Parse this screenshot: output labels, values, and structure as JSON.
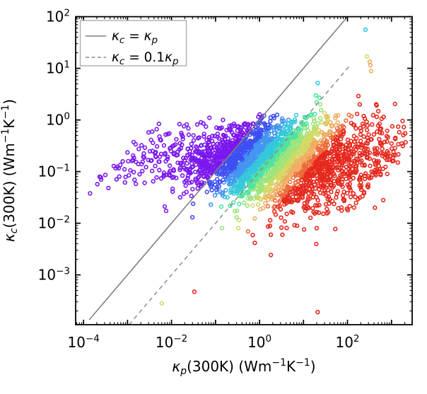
{
  "chart_data": {
    "type": "scatter",
    "title": "",
    "xlabel": "κp(300K) (Wm−1K−1)",
    "ylabel": "κc(300K) (Wm−1K−1)",
    "x_scale": "log",
    "y_scale": "log",
    "xlim": [
      6.6e-05,
      3000
    ],
    "ylim": [
      0.000108,
      100
    ],
    "xlim_log": [
      -4.18,
      3.47
    ],
    "ylim_log": [
      -3.965,
      2.0
    ],
    "grid": false,
    "legend_position": "upper left",
    "x_tick_labels": [
      {
        "e": -4,
        "base": "10",
        "exp": "−4"
      },
      {
        "e": -2,
        "base": "10",
        "exp": "−2"
      },
      {
        "e": 0,
        "base": "10",
        "exp": "0"
      },
      {
        "e": 2,
        "base": "10",
        "exp": "2"
      }
    ],
    "y_tick_labels": [
      {
        "e": -3,
        "base": "10",
        "exp": "−3"
      },
      {
        "e": -2,
        "base": "10",
        "exp": "−2"
      },
      {
        "e": -1,
        "base": "10",
        "exp": "−1"
      },
      {
        "e": 0,
        "base": "10",
        "exp": "0"
      },
      {
        "e": 1,
        "base": "10",
        "exp": "1"
      },
      {
        "e": 2,
        "base": "10",
        "exp": "2"
      }
    ],
    "xlabel_segments": [
      {
        "t": "κ",
        "s": "it"
      },
      {
        "t": "p",
        "s": "subit"
      },
      {
        "t": "(300K) (Wm",
        "s": "n"
      },
      {
        "t": "−1",
        "s": "sup"
      },
      {
        "t": "K",
        "s": "n"
      },
      {
        "t": "−1",
        "s": "sup"
      },
      {
        "t": ")",
        "s": "n"
      }
    ],
    "ylabel_segments": [
      {
        "t": "κ",
        "s": "it"
      },
      {
        "t": "c",
        "s": "subit"
      },
      {
        "t": "(300K) (Wm",
        "s": "n"
      },
      {
        "t": "−1",
        "s": "sup"
      },
      {
        "t": "K",
        "s": "n"
      },
      {
        "t": "−1",
        "s": "sup"
      },
      {
        "t": ")",
        "s": "n"
      }
    ],
    "legend": [
      {
        "label": "κc = κp",
        "style": "solid",
        "color": "#7f7f7f",
        "segments": [
          {
            "t": "κ",
            "s": "it"
          },
          {
            "t": "c",
            "s": "subit"
          },
          {
            "t": " = ",
            "s": "n"
          },
          {
            "t": "κ",
            "s": "it"
          },
          {
            "t": "p",
            "s": "subit"
          }
        ]
      },
      {
        "label": "κc = 0.1κp",
        "style": "dashed",
        "color": "#8c8c8c",
        "segments": [
          {
            "t": "κ",
            "s": "it"
          },
          {
            "t": "c",
            "s": "subit"
          },
          {
            "t": " = 0.1",
            "s": "n"
          },
          {
            "t": "κ",
            "s": "it"
          },
          {
            "t": "p",
            "s": "subit"
          }
        ]
      }
    ],
    "reference_lines": [
      {
        "name": "identity",
        "equation": "κc = κp",
        "factor": 1.0,
        "kp_range": [
          0.000135,
          130
        ],
        "color": "#7f7f7f",
        "width": 1.6,
        "dash": null
      },
      {
        "name": "one-tenth",
        "equation": "κc = 0.1κp",
        "factor": 0.1,
        "kp_range": [
          0.000135,
          110
        ],
        "color": "#8c8c8c",
        "width": 1.5,
        "dash": "6 5"
      }
    ],
    "color_encoding": "open-circle markers binned by ratio log10(κp/κc); violet where κp ≤ κc grading through blue, cyan, green, yellow, orange to red where κp ≫ κc; bands run parallel to the identity line",
    "palette": [
      "#7b17ee",
      "#3e4ff2",
      "#4395f0",
      "#35c8dc",
      "#4ee3a2",
      "#9ce57c",
      "#d2da66",
      "#f0ae62",
      "#ee6a3c",
      "#e6281d"
    ],
    "ratio_bin_edges_log10": [
      0,
      0.38,
      0.67,
      0.94,
      1.17,
      1.41,
      1.63,
      1.86,
      2.09
    ],
    "marker": {
      "shape": "open-circle",
      "radius_px": 2.4,
      "stroke_px": 1.6
    },
    "point_cloud": {
      "seed": 7,
      "core": {
        "n": 2200,
        "ratio_mean": 1.05,
        "ratio_sd": 0.8,
        "logkc_mean0": -0.62,
        "logkc_mean_slope": -0.13,
        "logkc_sd0": 0.3,
        "logkc_sd_slope": 0.06,
        "logkc_reflect_top": 0.12
      },
      "violet_wing": {
        "n": 300,
        "ratio_min": -0.04,
        "ratio_span": -2.5,
        "ratio_pow": 1.8,
        "logkc_mean": -0.7,
        "logkc_sd": 0.32
      },
      "red_wing": {
        "n": 430,
        "ratio_min": 2.1,
        "ratio_span": 1.75,
        "ratio_pow": 1.3,
        "logkc_mean": -1.02,
        "logkc_sd": 0.45,
        "logkc_reflect_top": 0.33,
        "logkp_reflect_right": 3.35
      }
    },
    "outlier_points": [
      [
        0.00025,
        0.07,
        0
      ],
      [
        0.006,
        0.00028,
        6
      ],
      [
        0.033,
        0.00047,
        9
      ],
      [
        21,
        0.00019,
        9
      ],
      [
        0.7,
        0.0059,
        9
      ],
      [
        3.3,
        0.006,
        9
      ],
      [
        20,
        0.008,
        9
      ],
      [
        257,
        56,
        3
      ],
      [
        276,
        17,
        6
      ],
      [
        320,
        13.5,
        7
      ],
      [
        330,
        11.5,
        7
      ],
      [
        345,
        8.8,
        7
      ],
      [
        21,
        5.2,
        3
      ],
      [
        19,
        3.0,
        4
      ],
      [
        23,
        2.7,
        4
      ],
      [
        20,
        2.2,
        4
      ],
      [
        24,
        2.0,
        5
      ],
      [
        25,
        1.55,
        5
      ],
      [
        30,
        1.35,
        6
      ],
      [
        33,
        1.15,
        7
      ],
      [
        32,
        0.85,
        7
      ],
      [
        177,
        2.9,
        9
      ],
      [
        190,
        2.0,
        9
      ],
      [
        450,
        2.0,
        9
      ],
      [
        1400,
        0.15,
        9
      ],
      [
        1000,
        0.35,
        9
      ],
      [
        800,
        0.09,
        9
      ],
      [
        650,
        0.028,
        9
      ],
      [
        420,
        0.02,
        9
      ],
      [
        0.078,
        0.023,
        2
      ],
      [
        0.135,
        0.021,
        4
      ],
      [
        0.14,
        0.008,
        5
      ],
      [
        0.3,
        0.013,
        5
      ],
      [
        0.33,
        0.008,
        6
      ]
    ],
    "axis_color": "#000000",
    "background_color": "#ffffff"
  }
}
